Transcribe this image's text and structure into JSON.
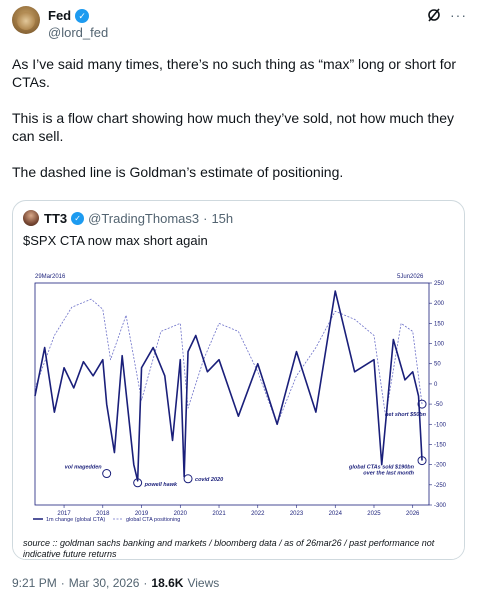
{
  "tweet": {
    "author_name": "Fed",
    "author_handle": "@lord_fed",
    "avatar_icon": "lion-avatar",
    "paragraphs": [
      "As I’ve said many times, there’s no such thing as “max” long or short for CTAs.",
      "This is a flow chart showing how much they’ve sold, not how much they can sell.",
      "The dashed line is Goldman’s estimate of positioning."
    ],
    "time": "9:21 PM",
    "date": "Mar 30, 2026",
    "views_count": "18.6K",
    "views_label": "Views",
    "separator": "·"
  },
  "quote": {
    "author_name": "TT3",
    "author_handle": "@TradingThomas3",
    "separator": "·",
    "time_ago": "15h",
    "text": "$SPX CTA now max short again"
  },
  "colors": {
    "verified": "#1d9bf0",
    "series_main": "#1a1f7a",
    "series_dashed": "#6c70c8"
  },
  "chart_data": {
    "type": "line",
    "start_label": "29Mar2016",
    "end_label": "5Jun2026",
    "x_ticks": [
      "2017",
      "2018",
      "2019",
      "2020",
      "2021",
      "2022",
      "2023",
      "2024",
      "2025",
      "2026"
    ],
    "y_ticks": [
      250,
      200,
      150,
      100,
      50,
      0,
      -50,
      -100,
      -150,
      -200,
      -250,
      -300
    ],
    "ylim": [
      -300,
      250
    ],
    "legend": {
      "placement": "bottom-left",
      "entries": [
        "1m change (global CTA)",
        "global CTA positioning"
      ]
    },
    "series": [
      {
        "name": "1m change (global CTA)",
        "style": "solid",
        "x": [
          2016.25,
          2016.5,
          2016.75,
          2017.0,
          2017.25,
          2017.5,
          2017.75,
          2018.0,
          2018.1,
          2018.3,
          2018.5,
          2018.8,
          2018.9,
          2019.0,
          2019.3,
          2019.6,
          2019.8,
          2020.0,
          2020.1,
          2020.2,
          2020.4,
          2020.7,
          2021.0,
          2021.5,
          2022.0,
          2022.5,
          2023.0,
          2023.5,
          2024.0,
          2024.5,
          2025.0,
          2025.2,
          2025.5,
          2025.8,
          2026.0,
          2026.15,
          2026.24
        ],
        "y": [
          -30,
          90,
          -70,
          40,
          -10,
          55,
          20,
          60,
          -50,
          -170,
          70,
          -200,
          -240,
          40,
          90,
          20,
          -140,
          60,
          -230,
          80,
          120,
          30,
          60,
          -80,
          50,
          -100,
          80,
          -70,
          230,
          30,
          60,
          -200,
          110,
          10,
          30,
          -30,
          -190
        ]
      },
      {
        "name": "global CTA positioning",
        "style": "dashed",
        "x": [
          2016.25,
          2016.75,
          2017.2,
          2017.7,
          2018.0,
          2018.2,
          2018.6,
          2019.0,
          2019.5,
          2020.0,
          2020.2,
          2020.6,
          2021.0,
          2021.5,
          2022.0,
          2022.5,
          2023.0,
          2023.5,
          2024.0,
          2024.5,
          2025.0,
          2025.3,
          2025.7,
          2026.0,
          2026.24
        ],
        "y": [
          -10,
          120,
          190,
          210,
          185,
          60,
          170,
          -40,
          130,
          150,
          -60,
          60,
          150,
          130,
          30,
          -100,
          20,
          90,
          180,
          160,
          120,
          -80,
          150,
          130,
          -50
        ]
      }
    ],
    "annotations": [
      {
        "text": "vol magedden",
        "x": 2018.1,
        "y": -222
      },
      {
        "text": "powell hawk",
        "x": 2018.9,
        "y": -245
      },
      {
        "text": "covid 2020",
        "x": 2020.2,
        "y": -235
      },
      {
        "text": "global CTAs sold $190bn over the last month",
        "x": 2026.24,
        "y": -190
      },
      {
        "text": "net short $50bn",
        "x": 2026.24,
        "y": -50
      }
    ],
    "source_note": "source :: goldman sachs banking and markets / bloomberg data / as of 26mar26 / past performance not indicative future returns"
  }
}
